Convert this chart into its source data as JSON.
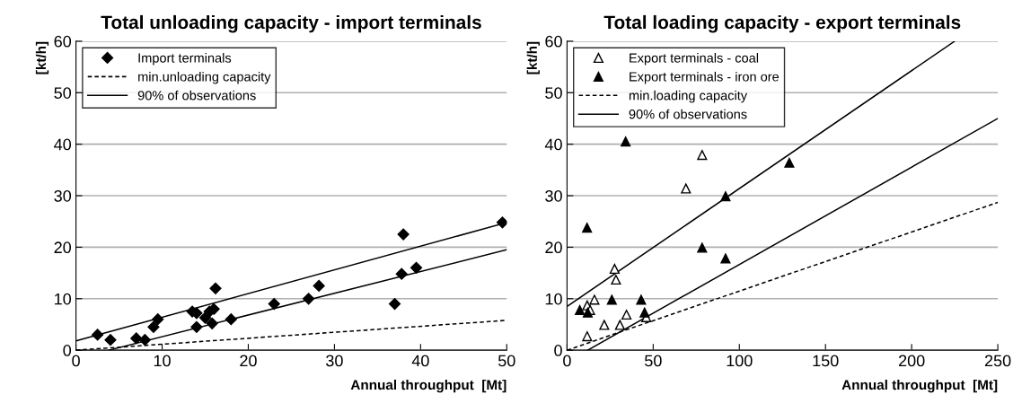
{
  "chart_data": [
    {
      "type": "scatter",
      "title": "Total unloading capacity - import terminals",
      "xlabel": "Annual throughput  [Mt]",
      "ylabel": "[kt/h]",
      "xlim": [
        0,
        50
      ],
      "xticks": [
        0,
        10,
        20,
        30,
        40,
        50
      ],
      "ylim": [
        0,
        60
      ],
      "yticks": [
        0,
        10,
        20,
        30,
        40,
        50,
        60
      ],
      "grid": "y",
      "legend": "top left",
      "series": [
        {
          "name": "Import terminals",
          "marker": "diamond",
          "color": "#000000",
          "x": [
            2.5,
            4,
            7,
            8,
            9,
            9.5,
            13.5,
            14,
            14,
            15,
            15.5,
            15.8,
            16,
            16.2,
            18,
            23,
            27,
            28.2,
            37,
            37.8,
            38,
            39.5,
            49.5
          ],
          "values": [
            3,
            2,
            2.3,
            2,
            4.5,
            6,
            7.5,
            7.2,
            4.5,
            6.3,
            7.5,
            5.2,
            8,
            12,
            6,
            9,
            10,
            12.5,
            9,
            14.8,
            22.5,
            16,
            24.8
          ]
        },
        {
          "name": "min.unloading capacity",
          "type": "line",
          "marker": "none",
          "line_style": "dashed",
          "color": "#000000",
          "x": [
            0,
            50
          ],
          "values": [
            0,
            5.8
          ]
        },
        {
          "name": "90% of observations",
          "type": "line",
          "marker": "none",
          "line_style": "solid",
          "color": "#000000",
          "x": [
            0,
            50
          ],
          "values": [
            1.8,
            24.8
          ]
        },
        {
          "type": "line",
          "marker": "none",
          "line_style": "solid",
          "color": "#000000",
          "x": [
            3.8,
            50
          ],
          "values": [
            0,
            19.5
          ]
        }
      ]
    },
    {
      "type": "scatter",
      "title": "Total loading capacity - export terminals",
      "xlabel": "Annual throughput  [Mt]",
      "ylabel": "[kt/h]",
      "xlim": [
        0,
        250
      ],
      "xticks": [
        0,
        50,
        100,
        150,
        200,
        250
      ],
      "ylim": [
        0,
        60
      ],
      "yticks": [
        0,
        10,
        20,
        30,
        40,
        50,
        60
      ],
      "grid": "y",
      "legend": "top left",
      "series": [
        {
          "name": "Export terminals - coal",
          "marker": "triangle",
          "color": "#ffffff",
          "x": [
            11.7,
            11.7,
            13.4,
            15.9,
            21.6,
            27.6,
            28.4,
            30.7,
            34.5,
            46,
            69,
            78.4
          ],
          "values": [
            2.7,
            8.7,
            7.8,
            9.8,
            4.9,
            15.8,
            13.7,
            4.9,
            6.9,
            6.4,
            31.4,
            37.9
          ]
        },
        {
          "name": "Export terminals - iron ore",
          "marker": "triangle",
          "color": "#000000",
          "x": [
            7.4,
            12,
            11.6,
            34,
            26,
            43,
            45,
            78.4,
            92,
            92,
            129
          ],
          "values": [
            7.8,
            7.3,
            23.8,
            40.5,
            9.8,
            9.8,
            7.3,
            19.9,
            29.9,
            17.8,
            36.4
          ]
        },
        {
          "name": "min.loading capacity",
          "type": "line",
          "marker": "none",
          "line_style": "dashed",
          "color": "#000000",
          "x": [
            0,
            250
          ],
          "values": [
            0,
            28.7
          ]
        },
        {
          "name": "90% of observations",
          "type": "line",
          "marker": "none",
          "line_style": "solid",
          "color": "#000000",
          "x": [
            0,
            225
          ],
          "values": [
            8.5,
            60
          ]
        },
        {
          "type": "line",
          "marker": "none",
          "line_style": "solid",
          "color": "#000000",
          "x": [
            12,
            250
          ],
          "values": [
            0,
            45
          ]
        }
      ]
    }
  ]
}
